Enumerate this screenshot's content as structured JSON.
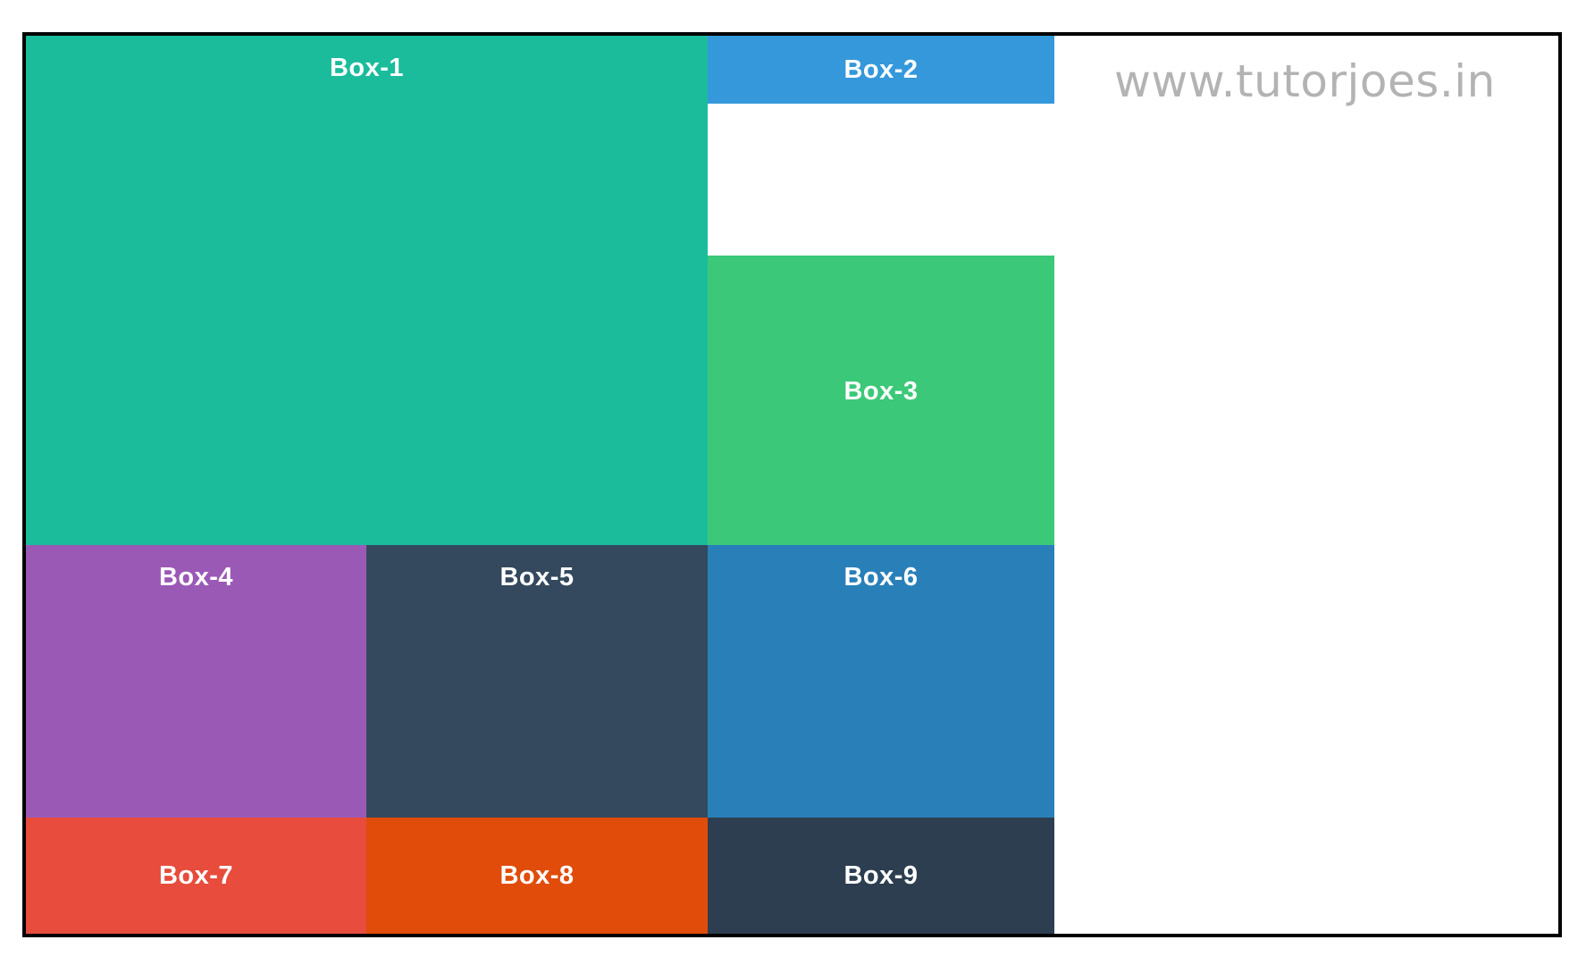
{
  "boxes": [
    {
      "label": "Box-1",
      "color": "#1abc9c"
    },
    {
      "label": "Box-2",
      "color": "#3498db"
    },
    {
      "label": "Box-3",
      "color": "#3bc878"
    },
    {
      "label": "Box-4",
      "color": "#9b59b6"
    },
    {
      "label": "Box-5",
      "color": "#34495e"
    },
    {
      "label": "Box-6",
      "color": "#2980b9"
    },
    {
      "label": "Box-7",
      "color": "#e74c3c"
    },
    {
      "label": "Box-8",
      "color": "#e14c0a"
    },
    {
      "label": "Box-9",
      "color": "#2c3e50"
    }
  ],
  "watermark": "www.tutorjoes.in"
}
